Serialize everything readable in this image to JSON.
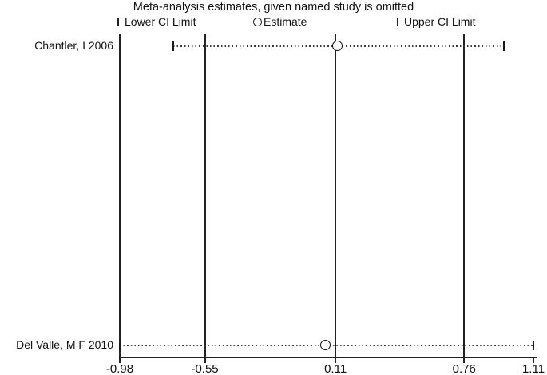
{
  "chart_data": {
    "type": "scatter",
    "variant": "leave-one-out-forest-plot",
    "title": "Meta-analysis estimates, given named study is omitted",
    "legend": [
      {
        "marker": "ci-tick",
        "label": "Lower CI Limit"
      },
      {
        "marker": "circle",
        "label": "Estimate"
      },
      {
        "marker": "ci-tick",
        "label": "Upper CI Limit"
      }
    ],
    "legend_position": "top",
    "grid": false,
    "x_axis": {
      "min": -0.98,
      "max": 1.11,
      "ticks": [
        -0.98,
        -0.55,
        0.11,
        0.76,
        1.11
      ],
      "tick_labels": [
        "-0.98",
        "-0.55",
        "0.11",
        "0.76",
        "1.11"
      ]
    },
    "reference_lines": [
      -0.55,
      0.11,
      0.76
    ],
    "studies": [
      {
        "label": "Chantler, I 2006",
        "lower": -0.71,
        "estimate": 0.12,
        "upper": 0.96
      },
      {
        "label": "Del Valle, M F 2010",
        "lower": -0.98,
        "estimate": 0.06,
        "upper": 1.11
      }
    ],
    "colors": {
      "foreground": "#000000",
      "background": "#ffffff",
      "ci_dotted_line": "#3a3a3a"
    }
  }
}
